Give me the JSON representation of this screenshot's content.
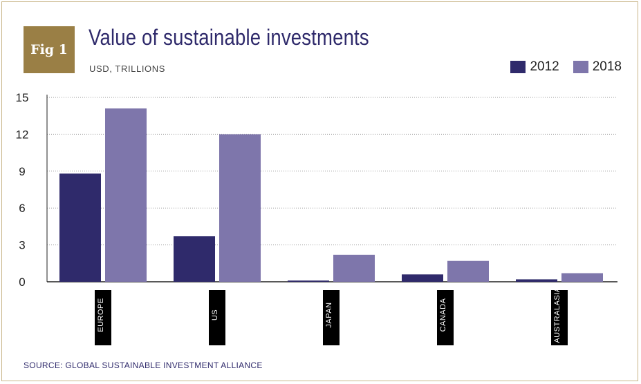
{
  "badge": {
    "text": "Fig 1"
  },
  "header": {
    "title": "Value of sustainable investments",
    "subtitle": "USD, TRILLIONS"
  },
  "source": "SOURCE: GLOBAL SUSTAINABLE INVESTMENT ALLIANCE",
  "colors": {
    "series_2012": "#2f2a6b",
    "series_2018": "#7e76ab",
    "badge": "#9a7f45",
    "title": "#2f2a6b",
    "label_box": "#000000"
  },
  "chart_data": {
    "type": "bar",
    "title": "Value of sustainable investments",
    "subtitle": "USD, TRILLIONS",
    "categories": [
      "EUROPE",
      "US",
      "JAPAN",
      "CANADA",
      "AUSTRALASIA"
    ],
    "series": [
      {
        "name": "2012",
        "values": [
          8.8,
          3.7,
          0.1,
          0.6,
          0.2
        ]
      },
      {
        "name": "2018",
        "values": [
          14.1,
          12.0,
          2.2,
          1.7,
          0.7
        ]
      }
    ],
    "yticks": [
      0,
      3,
      6,
      9,
      12,
      15
    ],
    "ylim": [
      0,
      15
    ],
    "xlabel": "",
    "ylabel": "",
    "legend": "top-right",
    "grid": "horizontal dotted"
  }
}
